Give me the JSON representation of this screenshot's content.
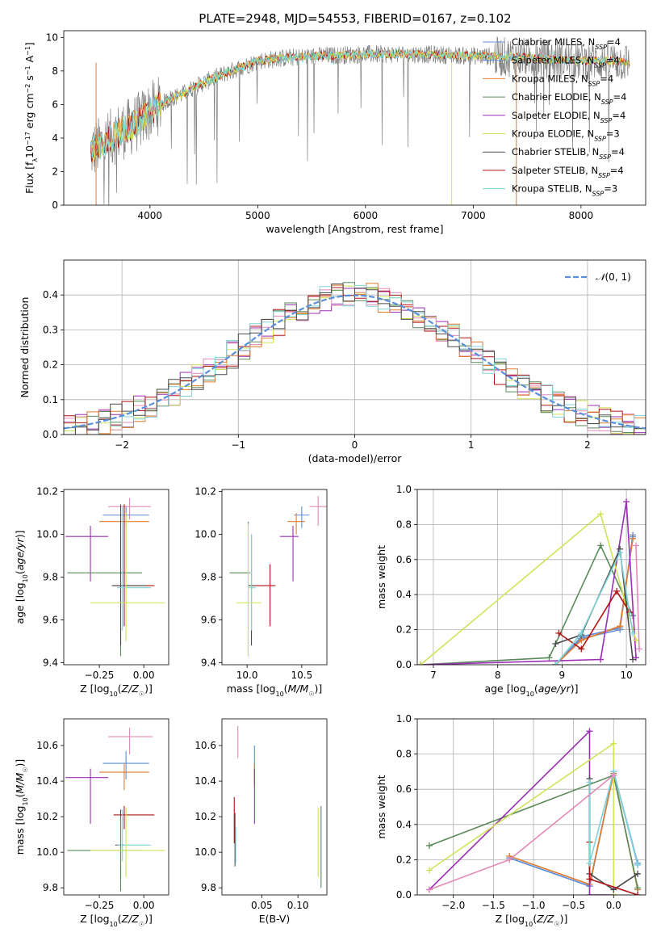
{
  "figure_title": "PLATE=2948, MJD=54553, FIBERID=0167, z=0.102",
  "colors": {
    "Chabrier MILES": "#6a8fd2",
    "Salpeter MILES": "#5b8fda",
    "Kroupa MILES": "#e07b2e",
    "Chabrier ELODIE": "#5a8a5a",
    "Salpeter ELODIE": "#9b2fb5",
    "Kroupa ELODIE": "#cfe35a",
    "Chabrier STELIB": "#4a4a4a",
    "Salpeter STELIB": "#b01414",
    "Kroupa STELIB": "#7fd3d8",
    "pink": "#e48ab8",
    "gaussian": "#5b8fda",
    "spectrum_grey": "#808080"
  },
  "chart_data": [
    {
      "id": "spectrum",
      "type": "line",
      "xlabel": "wavelength [Angstrom, rest frame]",
      "ylabel": "Flux [f_λ 10^-17 erg cm^-2 s^-1 A^-1]",
      "xlim": [
        3200,
        8600
      ],
      "ylim": [
        0,
        10.4
      ],
      "xticks": [
        4000,
        5000,
        6000,
        7000,
        8000
      ],
      "yticks": [
        0,
        2,
        4,
        6,
        8,
        10
      ],
      "continuum": {
        "x": [
          3450,
          3600,
          3700,
          3800,
          3900,
          4000,
          4100,
          4200,
          4300,
          4400,
          4600,
          4800,
          5000,
          5300,
          5600,
          6000,
          6500,
          7000,
          7500,
          8000,
          8300,
          8450
        ],
        "y": [
          3.2,
          3.8,
          4.3,
          4.6,
          5.0,
          5.6,
          6.0,
          6.4,
          6.6,
          7.0,
          7.6,
          8.1,
          8.6,
          8.8,
          8.9,
          9.0,
          9.0,
          8.9,
          8.8,
          8.6,
          8.6,
          8.5
        ]
      },
      "legend_position": "top-right",
      "legend": [
        {
          "name": "Chabrier MILES",
          "n": "4"
        },
        {
          "name": "Salpeter MILES",
          "n": "4"
        },
        {
          "name": "Kroupa MILES",
          "n": "4"
        },
        {
          "name": "Chabrier ELODIE",
          "n": "4"
        },
        {
          "name": "Salpeter ELODIE",
          "n": "4"
        },
        {
          "name": "Kroupa ELODIE",
          "n": "3"
        },
        {
          "name": "Chabrier STELIB",
          "n": "4"
        },
        {
          "name": "Salpeter STELIB",
          "n": "4"
        },
        {
          "name": "Kroupa STELIB",
          "n": "3"
        }
      ]
    },
    {
      "id": "residuals",
      "type": "histogram",
      "xlabel": "(data-model)/error",
      "ylabel": "Normed distribution",
      "xlim": [
        -2.5,
        2.5
      ],
      "ylim": [
        0,
        0.5
      ],
      "xticks": [
        -2,
        -1,
        0,
        1,
        2
      ],
      "yticks": [
        0.0,
        0.1,
        0.2,
        0.3,
        0.4
      ],
      "grid": true,
      "reference_curve": "N(0,1)",
      "legend_position": "top-right",
      "bin_width": 0.1
    },
    {
      "id": "age_vs_Z",
      "type": "errorbar",
      "xlabel": "Z [log10(Z/Z☉)]",
      "ylabel": "age [log10(age/yr)]",
      "xlim": [
        -0.45,
        0.14
      ],
      "ylim": [
        9.39,
        10.21
      ],
      "xticks": [
        -0.25,
        0.0
      ],
      "yticks": [
        9.4,
        9.6,
        9.8,
        10.0,
        10.2
      ],
      "points": [
        {
          "color": "pink",
          "x": -0.08,
          "xerr": [
            0.12,
            0.12
          ],
          "y": 10.13,
          "yerr": [
            0.06,
            0.04
          ]
        },
        {
          "color": "Salpeter MILES",
          "x": -0.1,
          "xerr": [
            0.13,
            0.13
          ],
          "y": 10.09,
          "yerr": [
            0.06,
            0.04
          ]
        },
        {
          "color": "Kroupa MILES",
          "x": -0.11,
          "xerr": [
            0.14,
            0.14
          ],
          "y": 10.06,
          "yerr": [
            0.3,
            0.08
          ]
        },
        {
          "color": "Salpeter ELODIE",
          "x": -0.3,
          "xerr": [
            0.14,
            0.1
          ],
          "y": 9.99,
          "yerr": [
            0.21,
            0.05
          ]
        },
        {
          "color": "Chabrier ELODIE",
          "x": -0.13,
          "xerr": [
            0.3,
            0.12
          ],
          "y": 9.82,
          "yerr": [
            0.39,
            0.18
          ]
        },
        {
          "color": "Salpeter STELIB",
          "x": -0.11,
          "xerr": [
            0.06,
            0.17
          ],
          "y": 9.76,
          "yerr": [
            0.19,
            0.38
          ]
        },
        {
          "color": "Chabrier STELIB",
          "x": -0.13,
          "xerr": [
            0.05,
            0.14
          ],
          "y": 9.76,
          "yerr": [
            0.28,
            0.38
          ]
        },
        {
          "color": "Kroupa STELIB",
          "x": -0.12,
          "xerr": [
            0.03,
            0.16
          ],
          "y": 9.75,
          "yerr": [
            0.2,
            0.38
          ]
        },
        {
          "color": "Kroupa ELODIE",
          "x": -0.1,
          "xerr": [
            0.2,
            0.22
          ],
          "y": 9.68,
          "yerr": [
            0.18,
            0.42
          ]
        }
      ]
    },
    {
      "id": "age_vs_mass",
      "type": "errorbar",
      "xlabel": "mass [log10(M/M☉)]",
      "ylabel": "",
      "xlim": [
        9.77,
        10.73
      ],
      "ylim": [
        9.39,
        10.21
      ],
      "xticks": [
        10.0,
        10.5
      ],
      "yticks": [
        9.4,
        9.6,
        9.8,
        10.0,
        10.2
      ],
      "points": [
        {
          "color": "pink",
          "x": 10.65,
          "xerr": [
            0.08,
            0.08
          ],
          "y": 10.13,
          "yerr": [
            0.09,
            0.05
          ]
        },
        {
          "color": "Salpeter MILES",
          "x": 10.5,
          "xerr": [
            0.07,
            0.07
          ],
          "y": 10.09,
          "yerr": [
            0.06,
            0.04
          ]
        },
        {
          "color": "Kroupa MILES",
          "x": 10.45,
          "xerr": [
            0.08,
            0.08
          ],
          "y": 10.06,
          "yerr": [
            0.06,
            0.04
          ]
        },
        {
          "color": "Salpeter ELODIE",
          "x": 10.42,
          "xerr": [
            0.12,
            0.05
          ],
          "y": 9.99,
          "yerr": [
            0.21,
            0.05
          ]
        },
        {
          "color": "Chabrier ELODIE",
          "x": 10.01,
          "xerr": [
            0.17,
            0.02
          ],
          "y": 9.82,
          "yerr": [
            0.39,
            0.24
          ]
        },
        {
          "color": "Salpeter STELIB",
          "x": 10.21,
          "xerr": [
            0.18,
            0.05
          ],
          "y": 9.76,
          "yerr": [
            0.19,
            0.1
          ]
        },
        {
          "color": "Chabrier STELIB",
          "x": 10.04,
          "xerr": [
            0.03,
            0.03
          ],
          "y": 9.76,
          "yerr": [
            0.28,
            0.24
          ]
        },
        {
          "color": "Kroupa STELIB",
          "x": 10.04,
          "xerr": [
            0.03,
            0.04
          ],
          "y": 9.75,
          "yerr": [
            0.2,
            0.25
          ]
        },
        {
          "color": "Kroupa ELODIE",
          "x": 10.01,
          "xerr": [
            0.11,
            0.12
          ],
          "y": 9.68,
          "yerr": [
            0.25,
            0.37
          ]
        }
      ]
    },
    {
      "id": "weight_vs_age",
      "type": "line",
      "xlabel": "age [log10(age/yr)]",
      "ylabel": "mass weight",
      "xlim": [
        6.75,
        10.3
      ],
      "ylim": [
        0,
        1.0
      ],
      "xticks": [
        7,
        8,
        9,
        10
      ],
      "yticks": [
        0.0,
        0.2,
        0.4,
        0.6,
        0.8,
        1.0
      ],
      "grid": true,
      "series": [
        {
          "color": "Chabrier MILES",
          "x": [
            8.9,
            9.3,
            9.9,
            10.1
          ],
          "y": [
            0.0,
            0.15,
            0.2,
            0.74
          ]
        },
        {
          "color": "Salpeter MILES",
          "x": [
            8.9,
            9.3,
            9.9,
            10.1
          ],
          "y": [
            0.0,
            0.16,
            0.21,
            0.73
          ]
        },
        {
          "color": "Kroupa MILES",
          "x": [
            8.9,
            9.3,
            9.9,
            10.1
          ],
          "y": [
            0.0,
            0.14,
            0.22,
            0.72
          ]
        },
        {
          "color": "Chabrier ELODIE",
          "x": [
            6.8,
            8.8,
            9.6,
            10.1
          ],
          "y": [
            0.0,
            0.04,
            0.68,
            0.28
          ]
        },
        {
          "color": "Salpeter ELODIE",
          "x": [
            6.8,
            9.6,
            10.0,
            10.15
          ],
          "y": [
            0.0,
            0.03,
            0.93,
            0.04
          ]
        },
        {
          "color": "Kroupa ELODIE",
          "x": [
            6.8,
            9.6,
            10.15
          ],
          "y": [
            0.0,
            0.86,
            0.14
          ]
        },
        {
          "color": "Chabrier STELIB",
          "x": [
            8.9,
            9.3,
            9.9,
            10.1
          ],
          "y": [
            0.12,
            0.17,
            0.66,
            0.03
          ]
        },
        {
          "color": "Salpeter STELIB",
          "x": [
            8.95,
            9.3,
            9.85,
            10.05
          ],
          "y": [
            0.18,
            0.09,
            0.42,
            0.3
          ]
        },
        {
          "color": "Kroupa STELIB",
          "x": [
            8.9,
            9.3,
            9.9,
            10.1
          ],
          "y": [
            0.0,
            0.18,
            0.64,
            0.18
          ]
        },
        {
          "color": "pink",
          "x": [
            10.15,
            10.2
          ],
          "y": [
            0.68,
            0.09
          ]
        }
      ]
    },
    {
      "id": "mass_vs_Z",
      "type": "errorbar",
      "xlabel": "Z [log10(Z/Z☉)]",
      "ylabel": "mass [log10(M/M☉)]",
      "xlim": [
        -0.45,
        0.14
      ],
      "ylim": [
        9.76,
        10.75
      ],
      "xticks": [
        -0.25,
        0.0
      ],
      "yticks": [
        9.8,
        10.0,
        10.2,
        10.4,
        10.6
      ],
      "points": [
        {
          "color": "pink",
          "x": -0.08,
          "xerr": [
            0.12,
            0.13
          ],
          "y": 10.65,
          "yerr": [
            0.1,
            0.05
          ]
        },
        {
          "color": "Salpeter MILES",
          "x": -0.1,
          "xerr": [
            0.13,
            0.13
          ],
          "y": 10.5,
          "yerr": [
            0.09,
            0.07
          ]
        },
        {
          "color": "Kroupa MILES",
          "x": -0.11,
          "xerr": [
            0.14,
            0.14
          ],
          "y": 10.45,
          "yerr": [
            0.1,
            0.05
          ]
        },
        {
          "color": "Salpeter ELODIE",
          "x": -0.3,
          "xerr": [
            0.14,
            0.1
          ],
          "y": 10.42,
          "yerr": [
            0.26,
            0.05
          ]
        },
        {
          "color": "Salpeter STELIB",
          "x": -0.11,
          "xerr": [
            0.06,
            0.17
          ],
          "y": 10.21,
          "yerr": [
            0.08,
            0.05
          ]
        },
        {
          "color": "Chabrier STELIB",
          "x": -0.13,
          "xerr": [
            0.03,
            0.02
          ],
          "y": 10.04,
          "yerr": [
            0.19,
            0.2
          ]
        },
        {
          "color": "Kroupa STELIB",
          "x": -0.12,
          "xerr": [
            0.03,
            0.16
          ],
          "y": 10.04,
          "yerr": [
            0.09,
            0.2
          ]
        },
        {
          "color": "Chabrier ELODIE",
          "x": -0.13,
          "xerr": [
            0.3,
            0.12
          ],
          "y": 10.01,
          "yerr": [
            0.23,
            0.19
          ]
        },
        {
          "color": "Kroupa ELODIE",
          "x": -0.1,
          "xerr": [
            0.2,
            0.22
          ],
          "y": 10.01,
          "yerr": [
            0.15,
            0.24
          ]
        }
      ]
    },
    {
      "id": "mass_vs_ebv",
      "type": "errorbar",
      "xlabel": "E(B-V)",
      "ylabel": "",
      "xlim": [
        -0.005,
        0.14
      ],
      "ylim": [
        9.76,
        10.75
      ],
      "xticks": [
        0.05,
        0.1
      ],
      "yticks": [
        9.8,
        10.0,
        10.2,
        10.4,
        10.6
      ],
      "points": [
        {
          "color": "pink",
          "x": 0.017,
          "xerr": [
            0,
            0
          ],
          "y": 10.62,
          "yerr": [
            0.09,
            0.09
          ]
        },
        {
          "color": "Salpeter MILES",
          "x": 0.04,
          "xerr": [
            0,
            0
          ],
          "y": 10.5,
          "yerr": [
            0.1,
            0.1
          ]
        },
        {
          "color": "Kroupa MILES",
          "x": 0.04,
          "xerr": [
            0,
            0
          ],
          "y": 10.45,
          "yerr": [
            0.08,
            0.05
          ]
        },
        {
          "color": "Salpeter ELODIE",
          "x": 0.04,
          "xerr": [
            0,
            0
          ],
          "y": 10.42,
          "yerr": [
            0.26,
            0.05
          ]
        },
        {
          "color": "Salpeter STELIB",
          "x": 0.012,
          "xerr": [
            0,
            0
          ],
          "y": 10.18,
          "yerr": [
            0.13,
            0.13
          ]
        },
        {
          "color": "Chabrier STELIB",
          "x": 0.013,
          "xerr": [
            0,
            0
          ],
          "y": 10.05,
          "yerr": [
            0.13,
            0.17
          ]
        },
        {
          "color": "Kroupa STELIB",
          "x": 0.014,
          "xerr": [
            0,
            0
          ],
          "y": 10.04,
          "yerr": [
            0.1,
            0.1
          ]
        },
        {
          "color": "Kroupa ELODIE",
          "x": 0.128,
          "xerr": [
            0,
            0
          ],
          "y": 10.01,
          "yerr": [
            0.15,
            0.24
          ]
        },
        {
          "color": "Chabrier ELODIE",
          "x": 0.132,
          "xerr": [
            0,
            0
          ],
          "y": 10.02,
          "yerr": [
            0.22,
            0.24
          ]
        }
      ]
    },
    {
      "id": "weight_vs_Z",
      "type": "line",
      "xlabel": "Z [log10(Z/Z☉)]",
      "ylabel": "mass weight",
      "xlim": [
        -2.45,
        0.4
      ],
      "ylim": [
        0,
        1.0
      ],
      "xticks": [
        -2.0,
        -1.5,
        -1.0,
        -0.5,
        0.0
      ],
      "yticks": [
        0.0,
        0.2,
        0.4,
        0.6,
        0.8,
        1.0
      ],
      "grid": true,
      "series": [
        {
          "color": "Chabrier MILES",
          "x": [
            -1.3,
            -0.3,
            0.0,
            0.3
          ],
          "y": [
            0.21,
            0.05,
            0.7,
            0.17
          ]
        },
        {
          "color": "Salpeter MILES",
          "x": [
            -1.3,
            -0.3,
            0.0,
            0.3
          ],
          "y": [
            0.21,
            0.05,
            0.7,
            0.18
          ]
        },
        {
          "color": "Kroupa MILES",
          "x": [
            -1.3,
            -0.3,
            0.0,
            0.3
          ],
          "y": [
            0.22,
            0.06,
            0.69,
            0.03
          ]
        },
        {
          "color": "Chabrier ELODIE",
          "x": [
            -2.3,
            0.0,
            0.3
          ],
          "y": [
            0.28,
            0.68,
            0.04
          ]
        },
        {
          "color": "Salpeter ELODIE",
          "x": [
            -2.3,
            -0.3,
            -0.3,
            0.0
          ],
          "y": [
            0.03,
            0.93,
            0.0,
            0.0
          ]
        },
        {
          "color": "Kroupa ELODIE",
          "x": [
            -2.3,
            0.0,
            0.0
          ],
          "y": [
            0.14,
            0.86,
            0.0
          ]
        },
        {
          "color": "Chabrier STELIB",
          "x": [
            -0.3,
            -0.3,
            0.0,
            0.3
          ],
          "y": [
            0.66,
            0.12,
            0.03,
            0.12
          ]
        },
        {
          "color": "Salpeter STELIB",
          "x": [
            -0.3,
            -0.3,
            0.3
          ],
          "y": [
            0.3,
            0.09,
            0.0
          ]
        },
        {
          "color": "Kroupa STELIB",
          "x": [
            -0.3,
            -0.3,
            0.0,
            0.3
          ],
          "y": [
            0.64,
            0.18,
            0.7,
            0.17
          ]
        },
        {
          "color": "pink",
          "x": [
            -2.3,
            -1.3,
            0.0
          ],
          "y": [
            0.03,
            0.2,
            0.68
          ]
        }
      ]
    }
  ]
}
